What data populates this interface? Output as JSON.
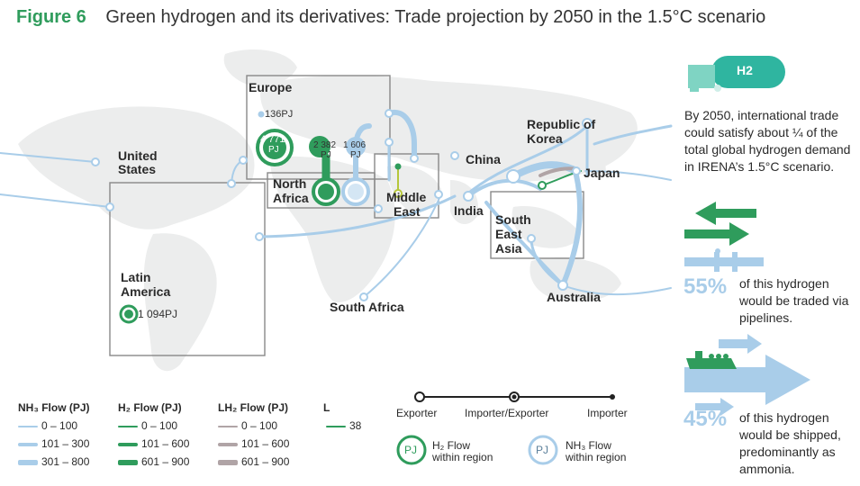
{
  "figure": {
    "label": "Figure 6",
    "title": "Green hydrogen and its derivatives: Trade projection by 2050 in the 1.5°C scenario"
  },
  "colors": {
    "nh3": "#a9cde9",
    "h2": "#2f9c5c",
    "lh2": "#b0a4a6",
    "map_land": "#eceded",
    "region_box": "#888888"
  },
  "regions": {
    "europe": "Europe",
    "united_states_1": "United",
    "united_states_2": "States",
    "north_africa_1": "North",
    "north_africa_2": "Africa",
    "middle_east_1": "Middle",
    "middle_east_2": "East",
    "china": "China",
    "republic_of_korea_1": "Republic of",
    "republic_of_korea_2": "Korea",
    "japan": "Japan",
    "india": "India",
    "south_east_asia_1": "South",
    "south_east_asia_2": "East",
    "south_east_asia_3": "Asia",
    "australia": "Australia",
    "latin_america_1": "Latin",
    "latin_america_2": "America",
    "south_africa": "South Africa"
  },
  "values": {
    "europe_nh3": "136PJ",
    "europe_h2_num": "4 771",
    "europe_h2_unit": "PJ",
    "north_africa_h2_num": "2 382",
    "north_africa_h2_unit": "PJ",
    "north_africa_nh3_num": "1 606",
    "north_africa_nh3_unit": "PJ",
    "latin_america_h2": "1 094PJ"
  },
  "sidebar": {
    "intro": "By 2050, international trade could satisfy about ¼ of the total global hydrogen demand in IRENA’s 1.5°C scenario.",
    "h2_icon_label": "H2",
    "pipeline_pct": "55%",
    "pipeline_text": "of this hydrogen would be traded via pipelines.",
    "ship_pct": "45%",
    "ship_text": "of this hydrogen would be shipped, predominantly as ammonia."
  },
  "legend": {
    "nh3_title": "NH₃ Flow (PJ)",
    "nh3_items": [
      "0 – 100",
      "101 – 300",
      "301 – 800"
    ],
    "h2_title": "H₂ Flow (PJ)",
    "h2_items": [
      "0 – 100",
      "101 – 600",
      "601 – 900"
    ],
    "lh2_title": "LH₂ Flow (PJ)",
    "lh2_items": [
      "0 – 100",
      "101 – 600",
      "601 – 900"
    ],
    "l_title": "L",
    "l_items": [
      "38"
    ],
    "exporter": "Exporter",
    "importer_exporter": "Importer/Exporter",
    "importer": "Importer",
    "h2_within_icon": "PJ",
    "h2_within_1": "H₂ Flow",
    "h2_within_2": "within region",
    "nh3_within_icon": "PJ",
    "nh3_within_1": "NH₃ Flow",
    "nh3_within_2": "within region"
  }
}
